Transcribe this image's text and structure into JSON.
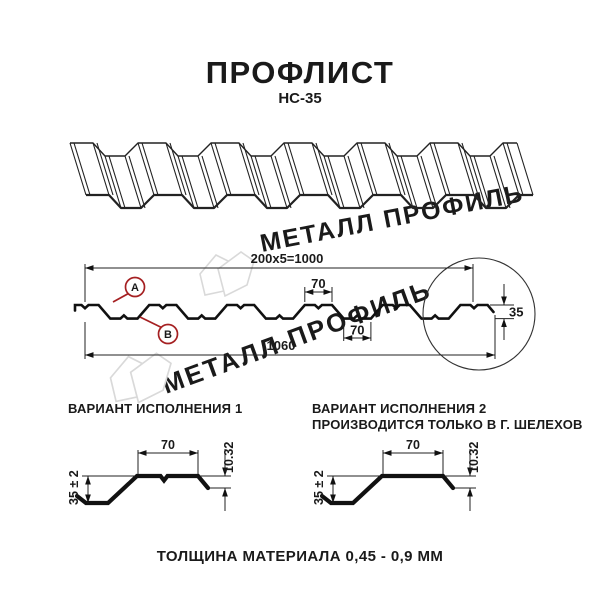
{
  "header": {
    "title": "ПРОФЛИСТ",
    "subtitle": "НС-35"
  },
  "watermark": {
    "text": "МЕТАЛЛ ПРОФИЛЬ",
    "text_color": "#c7c7c7",
    "logo_color": "#d9d9d9"
  },
  "cross_section": {
    "dim_top_total": "200x5=1000",
    "dim_top_rib": "70",
    "dim_bottom_rib": "70",
    "dim_height": "35",
    "dim_bottom_total": "1060",
    "marker_a": "A",
    "marker_b": "B",
    "marker_color": "#a52022"
  },
  "variants": [
    {
      "heading": "ВАРИАНТ ИСПОЛНЕНИЯ 1",
      "subheading": "",
      "dim_width": "70",
      "dim_height": "35 ± 2",
      "dim_edge": "10.32"
    },
    {
      "heading": "ВАРИАНТ ИСПОЛНЕНИЯ 2",
      "subheading": "ПРОИЗВОДИТСЯ ТОЛЬКО В Г. ШЕЛЕХОВ",
      "dim_width": "70",
      "dim_height": "35 ± 2",
      "dim_edge": "10.32"
    }
  ],
  "footer": {
    "note": "ТОЛЩИНА МАТЕРИАЛА 0,45 - 0,9 ММ"
  }
}
